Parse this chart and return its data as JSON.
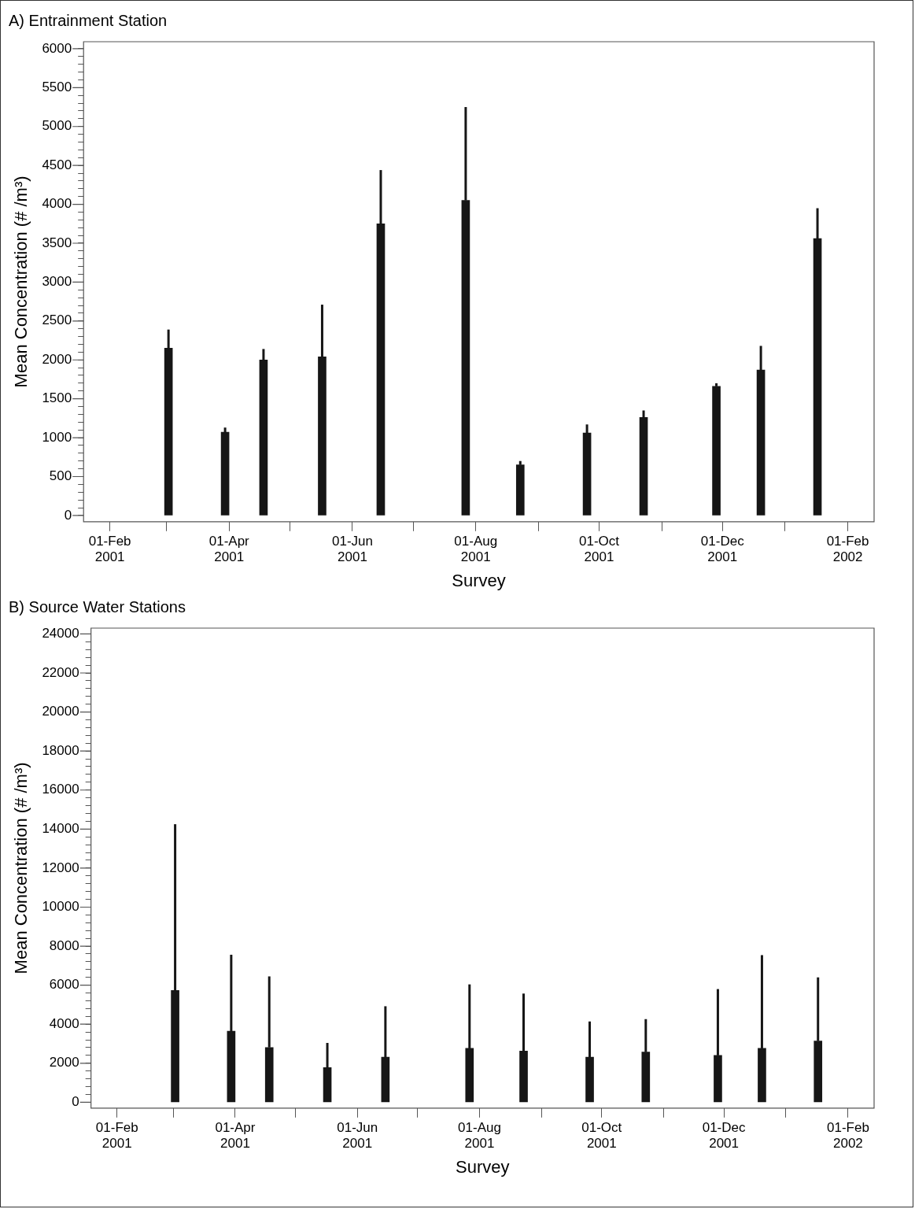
{
  "chart_data": [
    {
      "type": "bar",
      "title": "A) Entrainment Station",
      "xlabel": "Survey",
      "ylabel": "Mean Concentration (# /m³)",
      "grid": false,
      "legend": false,
      "x": [
        "2001-03-02",
        "2001-03-30",
        "2001-04-18",
        "2001-05-17",
        "2001-06-15",
        "2001-07-27",
        "2001-08-23",
        "2001-09-25",
        "2001-10-23",
        "2001-11-28",
        "2001-12-20",
        "2002-01-17"
      ],
      "series": [
        {
          "color": "#161616",
          "values": [
            2150,
            1070,
            2000,
            2040,
            3750,
            4050,
            650,
            1060,
            1260,
            1660,
            1870,
            3560
          ],
          "errors": [
            [
              2150,
              2390
            ],
            [
              1070,
              1130
            ],
            [
              2000,
              2140
            ],
            [
              2040,
              2710
            ],
            [
              3750,
              4440
            ],
            [
              4050,
              5250
            ],
            [
              650,
              700
            ],
            [
              1060,
              1170
            ],
            [
              1260,
              1350
            ],
            [
              1660,
              1700
            ],
            [
              1870,
              2180
            ],
            [
              3560,
              3950
            ]
          ]
        }
      ],
      "xlim": [
        "2001-01-19",
        "2002-02-14"
      ],
      "xticks": [
        {
          "value": "2001-02-01",
          "label": "01-Feb\n2001"
        },
        {
          "value": "2001-03-01",
          "label": null
        },
        {
          "value": "2001-04-01",
          "label": "01-Apr\n2001"
        },
        {
          "value": "2001-05-01",
          "label": null
        },
        {
          "value": "2001-06-01",
          "label": "01-Jun\n2001"
        },
        {
          "value": "2001-07-01",
          "label": null
        },
        {
          "value": "2001-08-01",
          "label": "01-Aug\n2001"
        },
        {
          "value": "2001-09-01",
          "label": null
        },
        {
          "value": "2001-10-01",
          "label": "01-Oct\n2001"
        },
        {
          "value": "2001-11-01",
          "label": null
        },
        {
          "value": "2001-12-01",
          "label": "01-Dec\n2001"
        },
        {
          "value": "2002-01-01",
          "label": null
        },
        {
          "value": "2002-02-01",
          "label": "01-Feb\n2002"
        }
      ],
      "ylim": [
        -80,
        6090
      ],
      "yticks": [
        0,
        {
          "value": 100,
          "label": null
        },
        {
          "value": 200,
          "label": null
        },
        {
          "value": 300,
          "label": null
        },
        {
          "value": 400,
          "label": null
        },
        500,
        {
          "value": 600,
          "label": null
        },
        {
          "value": 700,
          "label": null
        },
        {
          "value": 800,
          "label": null
        },
        {
          "value": 900,
          "label": null
        },
        1000,
        {
          "value": 1100,
          "label": null
        },
        {
          "value": 1200,
          "label": null
        },
        {
          "value": 1300,
          "label": null
        },
        {
          "value": 1400,
          "label": null
        },
        1500,
        {
          "value": 1600,
          "label": null
        },
        {
          "value": 1700,
          "label": null
        },
        {
          "value": 1800,
          "label": null
        },
        {
          "value": 1900,
          "label": null
        },
        2000,
        {
          "value": 2100,
          "label": null
        },
        {
          "value": 2200,
          "label": null
        },
        {
          "value": 2300,
          "label": null
        },
        {
          "value": 2400,
          "label": null
        },
        2500,
        {
          "value": 2600,
          "label": null
        },
        {
          "value": 2700,
          "label": null
        },
        {
          "value": 2800,
          "label": null
        },
        {
          "value": 2900,
          "label": null
        },
        3000,
        {
          "value": 3100,
          "label": null
        },
        {
          "value": 3200,
          "label": null
        },
        {
          "value": 3300,
          "label": null
        },
        {
          "value": 3400,
          "label": null
        },
        3500,
        {
          "value": 3600,
          "label": null
        },
        {
          "value": 3700,
          "label": null
        },
        {
          "value": 3800,
          "label": null
        },
        {
          "value": 3900,
          "label": null
        },
        4000,
        {
          "value": 4100,
          "label": null
        },
        {
          "value": 4200,
          "label": null
        },
        {
          "value": 4300,
          "label": null
        },
        {
          "value": 4400,
          "label": null
        },
        4500,
        {
          "value": 4600,
          "label": null
        },
        {
          "value": 4700,
          "label": null
        },
        {
          "value": 4800,
          "label": null
        },
        {
          "value": 4900,
          "label": null
        },
        5000,
        {
          "value": 5100,
          "label": null
        },
        {
          "value": 5200,
          "label": null
        },
        {
          "value": 5300,
          "label": null
        },
        {
          "value": 5400,
          "label": null
        },
        5500,
        {
          "value": 5600,
          "label": null
        },
        {
          "value": 5700,
          "label": null
        },
        {
          "value": 5800,
          "label": null
        },
        {
          "value": 5900,
          "label": null
        },
        6000
      ]
    },
    {
      "type": "bar",
      "title": "B) Source Water Stations",
      "xlabel": "Survey",
      "ylabel": "Mean Concentration (# /m³)",
      "grid": false,
      "legend": false,
      "x": [
        "2001-03-02",
        "2001-03-30",
        "2001-04-18",
        "2001-05-17",
        "2001-06-15",
        "2001-07-27",
        "2001-08-23",
        "2001-09-25",
        "2001-10-23",
        "2001-11-28",
        "2001-12-20",
        "2002-01-17"
      ],
      "series": [
        {
          "color": "#161616",
          "values": [
            5730,
            3640,
            2810,
            1780,
            2310,
            2760,
            2620,
            2310,
            2570,
            2400,
            2760,
            3140
          ],
          "errors": [
            [
              5730,
              14250
            ],
            [
              3640,
              7560
            ],
            [
              2810,
              6450
            ],
            [
              1780,
              3040
            ],
            [
              2310,
              4920
            ],
            [
              2760,
              6040
            ],
            [
              2620,
              5570
            ],
            [
              2310,
              4140
            ],
            [
              2570,
              4260
            ],
            [
              2400,
              5800
            ],
            [
              2760,
              7540
            ],
            [
              3140,
              6400
            ]
          ]
        }
      ],
      "xlim": [
        "2001-01-19",
        "2002-02-14"
      ],
      "xticks": [
        {
          "value": "2001-02-01",
          "label": "01-Feb\n2001"
        },
        {
          "value": "2001-03-01",
          "label": null
        },
        {
          "value": "2001-04-01",
          "label": "01-Apr\n2001"
        },
        {
          "value": "2001-05-01",
          "label": null
        },
        {
          "value": "2001-06-01",
          "label": "01-Jun\n2001"
        },
        {
          "value": "2001-07-01",
          "label": null
        },
        {
          "value": "2001-08-01",
          "label": "01-Aug\n2001"
        },
        {
          "value": "2001-09-01",
          "label": null
        },
        {
          "value": "2001-10-01",
          "label": "01-Oct\n2001"
        },
        {
          "value": "2001-11-01",
          "label": null
        },
        {
          "value": "2001-12-01",
          "label": "01-Dec\n2001"
        },
        {
          "value": "2002-01-01",
          "label": null
        },
        {
          "value": "2002-02-01",
          "label": "01-Feb\n2002"
        }
      ],
      "ylim": [
        -300,
        24300
      ],
      "yticks": [
        0,
        {
          "value": 400,
          "label": null
        },
        {
          "value": 800,
          "label": null
        },
        {
          "value": 1200,
          "label": null
        },
        {
          "value": 1600,
          "label": null
        },
        2000,
        {
          "value": 2400,
          "label": null
        },
        {
          "value": 2800,
          "label": null
        },
        {
          "value": 3200,
          "label": null
        },
        {
          "value": 3600,
          "label": null
        },
        4000,
        {
          "value": 4400,
          "label": null
        },
        {
          "value": 4800,
          "label": null
        },
        {
          "value": 5200,
          "label": null
        },
        {
          "value": 5600,
          "label": null
        },
        6000,
        {
          "value": 6400,
          "label": null
        },
        {
          "value": 6800,
          "label": null
        },
        {
          "value": 7200,
          "label": null
        },
        {
          "value": 7600,
          "label": null
        },
        8000,
        {
          "value": 8400,
          "label": null
        },
        {
          "value": 8800,
          "label": null
        },
        {
          "value": 9200,
          "label": null
        },
        {
          "value": 9600,
          "label": null
        },
        10000,
        {
          "value": 10400,
          "label": null
        },
        {
          "value": 10800,
          "label": null
        },
        {
          "value": 11200,
          "label": null
        },
        {
          "value": 11600,
          "label": null
        },
        12000,
        {
          "value": 12400,
          "label": null
        },
        {
          "value": 12800,
          "label": null
        },
        {
          "value": 13200,
          "label": null
        },
        {
          "value": 13600,
          "label": null
        },
        14000,
        {
          "value": 14400,
          "label": null
        },
        {
          "value": 14800,
          "label": null
        },
        {
          "value": 15200,
          "label": null
        },
        {
          "value": 15600,
          "label": null
        },
        16000,
        {
          "value": 16400,
          "label": null
        },
        {
          "value": 16800,
          "label": null
        },
        {
          "value": 17200,
          "label": null
        },
        {
          "value": 17600,
          "label": null
        },
        18000,
        {
          "value": 18400,
          "label": null
        },
        {
          "value": 18800,
          "label": null
        },
        {
          "value": 19200,
          "label": null
        },
        {
          "value": 19600,
          "label": null
        },
        20000,
        {
          "value": 20400,
          "label": null
        },
        {
          "value": 20800,
          "label": null
        },
        {
          "value": 21200,
          "label": null
        },
        {
          "value": 21600,
          "label": null
        },
        22000,
        {
          "value": 22400,
          "label": null
        },
        {
          "value": 22800,
          "label": null
        },
        {
          "value": 23200,
          "label": null
        },
        {
          "value": 23600,
          "label": null
        },
        24000
      ]
    }
  ]
}
